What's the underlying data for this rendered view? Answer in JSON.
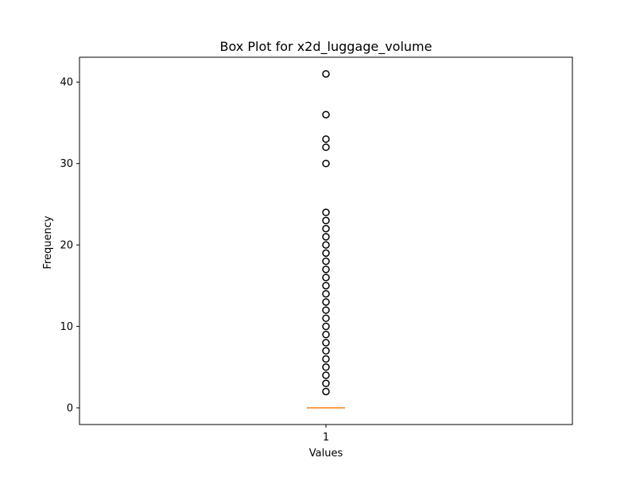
{
  "chart_data": {
    "type": "box",
    "title": "Box Plot for x2d_luggage_volume",
    "xlabel": "Values",
    "ylabel": "Frequency",
    "categories": [
      "1"
    ],
    "ylim": [
      -2.05,
      43.05
    ],
    "yticks": [
      0,
      10,
      20,
      30,
      40
    ],
    "grid": false,
    "box": {
      "whislo": 0,
      "q1": 0,
      "median": 0,
      "q3": 0,
      "whishi": 0,
      "fliers": [
        2,
        3,
        4,
        5,
        6,
        7,
        8,
        9,
        10,
        11,
        12,
        13,
        14,
        15,
        16,
        17,
        18,
        19,
        20,
        21,
        22,
        23,
        24,
        30,
        32,
        33,
        36,
        41
      ]
    },
    "colors": {
      "median": "#ff7f0e",
      "box": "#000000",
      "flier": "#000000"
    }
  }
}
